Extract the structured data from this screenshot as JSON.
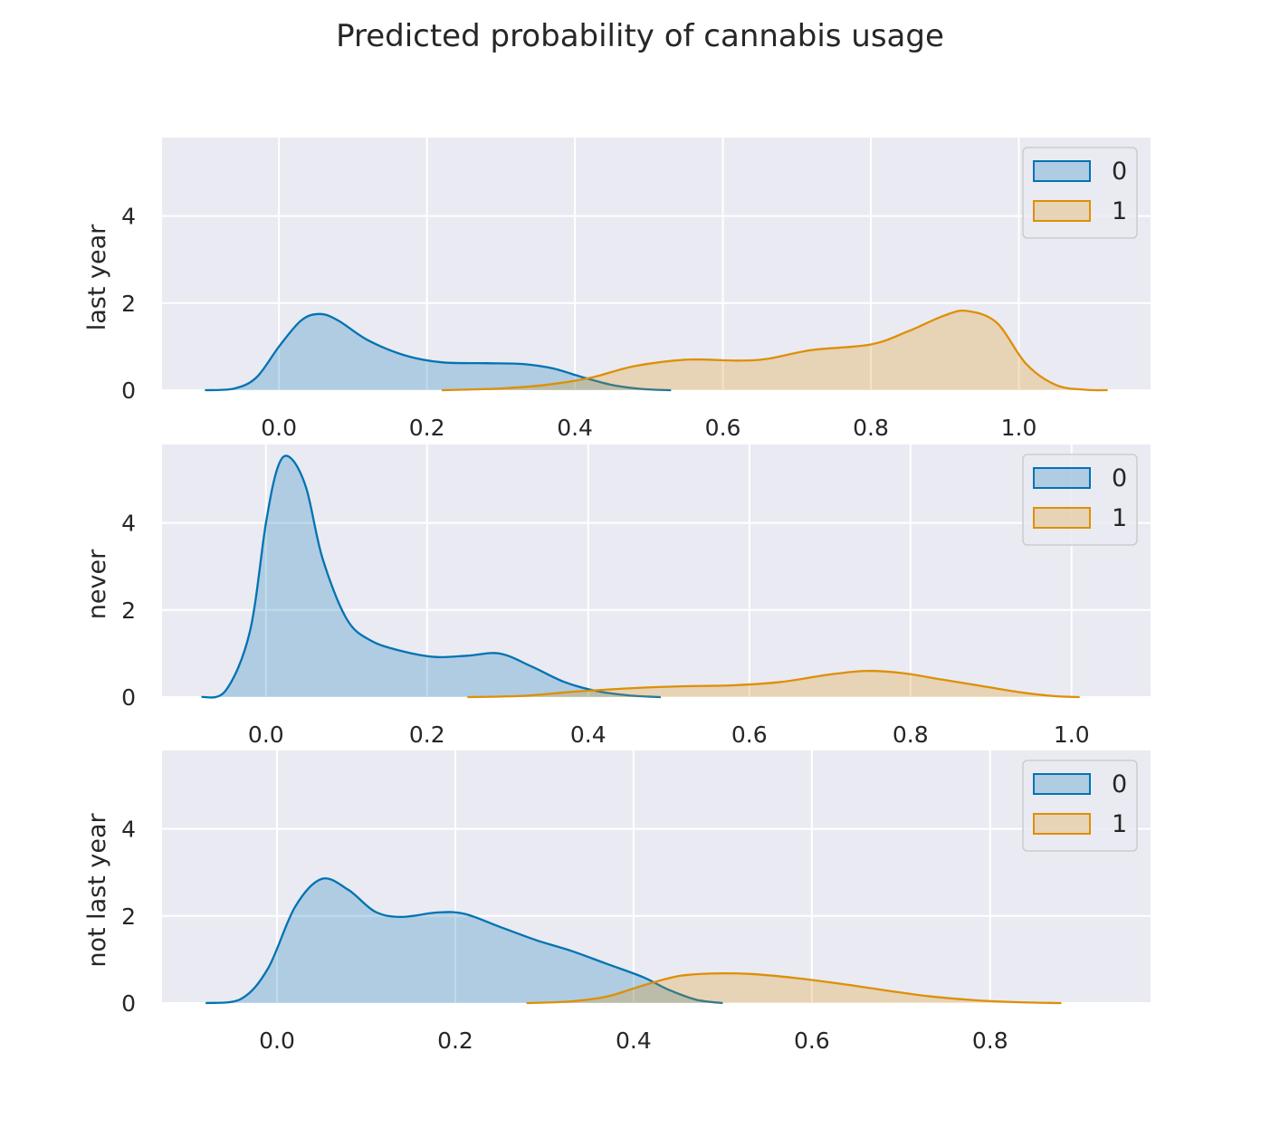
{
  "figure": {
    "title": "Predicted probability of cannabis usage"
  },
  "chart_data": [
    {
      "type": "area",
      "ylabel": "last year",
      "xlim": [
        -0.158,
        1.178
      ],
      "ylim": [
        0,
        5.8
      ],
      "xticks": [
        "0.0",
        "0.2",
        "0.4",
        "0.6",
        "0.8",
        "1.0"
      ],
      "xtick_values": [
        0.0,
        0.2,
        0.4,
        0.6,
        0.8,
        1.0
      ],
      "yticks": [
        "0",
        "2",
        "4"
      ],
      "ytick_values": [
        0,
        2,
        4
      ],
      "grid": true,
      "legend": {
        "position": "top-right",
        "entries": [
          "0",
          "1"
        ]
      },
      "series": [
        {
          "name": "0",
          "color": "#0173b2",
          "x": [
            -0.1,
            -0.06,
            -0.03,
            0.0,
            0.03,
            0.055,
            0.08,
            0.12,
            0.17,
            0.22,
            0.28,
            0.33,
            0.37,
            0.41,
            0.45,
            0.49,
            0.53
          ],
          "y": [
            0.0,
            0.04,
            0.3,
            1.0,
            1.6,
            1.75,
            1.6,
            1.15,
            0.8,
            0.64,
            0.62,
            0.6,
            0.5,
            0.3,
            0.12,
            0.03,
            0.0
          ]
        },
        {
          "name": "1",
          "color": "#de8f05",
          "x": [
            0.22,
            0.3,
            0.36,
            0.42,
            0.48,
            0.55,
            0.62,
            0.66,
            0.72,
            0.8,
            0.85,
            0.9,
            0.93,
            0.97,
            1.01,
            1.05,
            1.09,
            1.12
          ],
          "y": [
            0.0,
            0.04,
            0.12,
            0.28,
            0.55,
            0.7,
            0.68,
            0.72,
            0.92,
            1.05,
            1.35,
            1.72,
            1.82,
            1.55,
            0.6,
            0.12,
            0.01,
            0.0
          ]
        }
      ]
    },
    {
      "type": "area",
      "ylabel": "never",
      "xlim": [
        -0.129,
        1.098
      ],
      "ylim": [
        0,
        5.8
      ],
      "xticks": [
        "0.0",
        "0.2",
        "0.4",
        "0.6",
        "0.8",
        "1.0"
      ],
      "xtick_values": [
        0.0,
        0.2,
        0.4,
        0.6,
        0.8,
        1.0
      ],
      "yticks": [
        "0",
        "2",
        "4"
      ],
      "ytick_values": [
        0,
        2,
        4
      ],
      "grid": true,
      "legend": {
        "position": "top-right",
        "entries": [
          "0",
          "1"
        ]
      },
      "series": [
        {
          "name": "0",
          "color": "#0173b2",
          "x": [
            -0.08,
            -0.05,
            -0.02,
            0.0,
            0.015,
            0.03,
            0.05,
            0.07,
            0.1,
            0.13,
            0.17,
            0.21,
            0.25,
            0.29,
            0.33,
            0.37,
            0.41,
            0.45,
            0.49
          ],
          "y": [
            0.0,
            0.15,
            1.5,
            4.0,
            5.3,
            5.5,
            4.8,
            3.2,
            1.8,
            1.3,
            1.05,
            0.92,
            0.95,
            1.0,
            0.7,
            0.35,
            0.14,
            0.04,
            0.0
          ]
        },
        {
          "name": "1",
          "color": "#de8f05",
          "x": [
            0.25,
            0.32,
            0.38,
            0.45,
            0.52,
            0.58,
            0.64,
            0.7,
            0.745,
            0.79,
            0.84,
            0.89,
            0.94,
            0.98,
            1.01
          ],
          "y": [
            0.0,
            0.03,
            0.12,
            0.2,
            0.25,
            0.27,
            0.35,
            0.52,
            0.6,
            0.55,
            0.4,
            0.25,
            0.1,
            0.02,
            0.0
          ]
        }
      ]
    },
    {
      "type": "area",
      "ylabel": "not last year",
      "xlim": [
        -0.129,
        0.98
      ],
      "ylim": [
        0,
        5.8
      ],
      "xticks": [
        "0.0",
        "0.2",
        "0.4",
        "0.6",
        "0.8"
      ],
      "xtick_values": [
        0.0,
        0.2,
        0.4,
        0.6,
        0.8
      ],
      "yticks": [
        "0",
        "2",
        "4"
      ],
      "ytick_values": [
        0,
        2,
        4
      ],
      "grid": true,
      "legend": {
        "position": "top-right",
        "entries": [
          "0",
          "1"
        ]
      },
      "series": [
        {
          "name": "0",
          "color": "#0173b2",
          "x": [
            -0.08,
            -0.04,
            -0.01,
            0.02,
            0.05,
            0.08,
            0.11,
            0.14,
            0.18,
            0.21,
            0.25,
            0.29,
            0.33,
            0.37,
            0.41,
            0.44,
            0.47,
            0.5
          ],
          "y": [
            0.0,
            0.1,
            0.8,
            2.2,
            2.85,
            2.6,
            2.1,
            1.98,
            2.08,
            2.05,
            1.75,
            1.45,
            1.2,
            0.9,
            0.6,
            0.3,
            0.08,
            0.0
          ]
        },
        {
          "name": "1",
          "color": "#de8f05",
          "x": [
            0.28,
            0.33,
            0.37,
            0.41,
            0.45,
            0.49,
            0.53,
            0.58,
            0.63,
            0.68,
            0.73,
            0.78,
            0.83,
            0.88
          ],
          "y": [
            0.0,
            0.04,
            0.15,
            0.4,
            0.62,
            0.68,
            0.67,
            0.58,
            0.45,
            0.3,
            0.16,
            0.07,
            0.02,
            0.0
          ]
        }
      ]
    }
  ]
}
